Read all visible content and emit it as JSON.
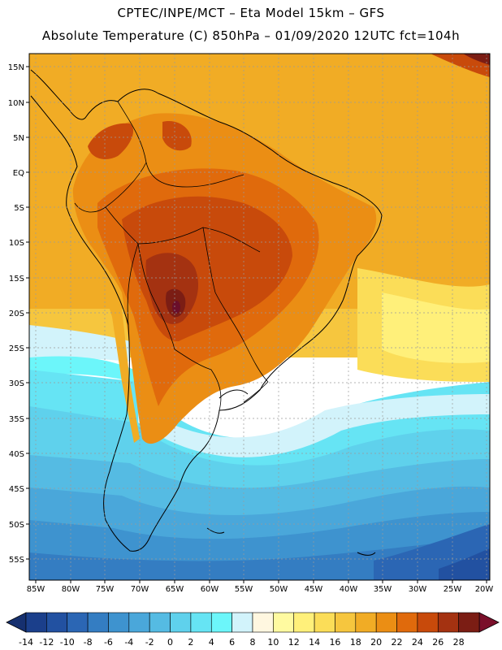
{
  "header": {
    "line1": "CPTEC/INPE/MCT –   Eta Model 15km – GFS",
    "line2": "Absolute Temperature (C) 850hPa – 01/09/2020 12UTC fct=104h"
  },
  "axes": {
    "lat_labels": [
      "15N",
      "10N",
      "5N",
      "EQ",
      "5S",
      "10S",
      "15S",
      "20S",
      "25S",
      "30S",
      "35S",
      "40S",
      "45S",
      "50S",
      "55S"
    ],
    "lon_labels": [
      "85W",
      "80W",
      "75W",
      "70W",
      "65W",
      "60W",
      "55W",
      "50W",
      "45W",
      "40W",
      "35W",
      "30W",
      "25W",
      "20W"
    ]
  },
  "colorbar": {
    "labels": [
      "-14",
      "-12",
      "-10",
      "-8",
      "-6",
      "-4",
      "-2",
      "0",
      "2",
      "4",
      "6",
      "8",
      "10",
      "12",
      "14",
      "16",
      "18",
      "20",
      "22",
      "24",
      "26",
      "28"
    ],
    "colors": [
      "#1b3f8b",
      "#2251a1",
      "#2b66b4",
      "#347dc2",
      "#3e93cf",
      "#4aa7da",
      "#55bbe3",
      "#5fd1ec",
      "#66e4f4",
      "#6cf6fa",
      "#d2f3fb",
      "#fff7e0",
      "#fffaa0",
      "#fff07a",
      "#fbdd58",
      "#f6c63e",
      "#f1ac25",
      "#eb8e14",
      "#e06a0c",
      "#c84a0b",
      "#a43211",
      "#7b1d14"
    ],
    "under_color": "#16306f",
    "over_color": "#7a0f2a"
  }
}
